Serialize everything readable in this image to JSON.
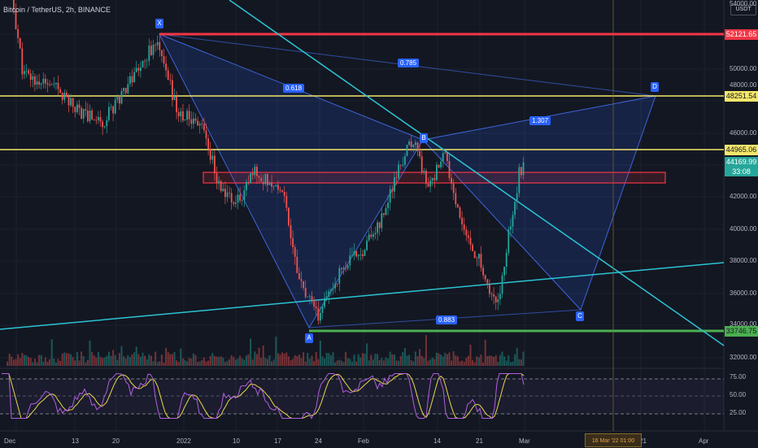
{
  "header": {
    "title": "Bitcoin / TetherUS, 2h, BINANCE",
    "currency": "USDT"
  },
  "price_axis": {
    "ticks": [
      "54000.00",
      "50000.00",
      "48000.00",
      "46000.00",
      "42000.00",
      "40000.00",
      "38000.00",
      "36000.00",
      "34000.00",
      "32000.00"
    ],
    "tags": {
      "x_level": "52121.65",
      "upper_yellow": "48251.54",
      "lower_yellow": "44965.06",
      "current_price": "44169.99",
      "countdown": "33:08",
      "support": "33746.75"
    }
  },
  "rsi_axis": {
    "ticks": [
      "75.00",
      "50.00",
      "25.00"
    ]
  },
  "time_axis": {
    "ticks": [
      "Dec",
      "13",
      "20",
      "2022",
      "10",
      "17",
      "24",
      "Feb",
      "14",
      "21",
      "Mar",
      "21",
      "Apr"
    ],
    "crosshair_label": "16 Mar '22   01:00"
  },
  "pattern": {
    "points": [
      "X",
      "A",
      "B",
      "C",
      "D"
    ],
    "ratios": {
      "xb": "0.618",
      "xd": "0.785",
      "bd": "1.307",
      "ac": "0.883"
    }
  },
  "colors": {
    "background": "#131722",
    "up": "#26a69a",
    "down": "#ef5350",
    "pattern": "#2962ff",
    "trendline": "#2bc4d4",
    "resistance": "#f23645",
    "yellow": "#f5e76a",
    "support": "#4caf50",
    "rsi": "#b25fe0",
    "rsi_ma": "#e6d94a"
  },
  "chart_data": {
    "type": "candlestick",
    "symbol": "BTC/USDT",
    "interval": "2h",
    "ylim": [
      32000,
      54000
    ],
    "levels": [
      52121.65,
      48251.54,
      44965.06,
      33746.75
    ],
    "current_price": 44169.99,
    "pattern_points": [
      {
        "label": "X",
        "date": "2021-12-27",
        "price": 52121.65
      },
      {
        "label": "A",
        "date": "2022-01-24",
        "price": 33746.75
      },
      {
        "label": "B",
        "date": "2022-02-10",
        "price": 45800
      },
      {
        "label": "C",
        "date": "2022-03-07",
        "price": 34800
      },
      {
        "label": "D",
        "date": "2022-03-19",
        "price": 48251.54
      }
    ],
    "rsi_levels": [
      75,
      50,
      25
    ],
    "price_path": [
      {
        "date": "2021-12-01",
        "price": 57000
      },
      {
        "date": "2021-12-04",
        "price": 49500
      },
      {
        "date": "2021-12-10",
        "price": 48500
      },
      {
        "date": "2021-12-14",
        "price": 47200
      },
      {
        "date": "2021-12-18",
        "price": 46600
      },
      {
        "date": "2021-12-22",
        "price": 48900
      },
      {
        "date": "2021-12-27",
        "price": 51500
      },
      {
        "date": "2021-12-31",
        "price": 47000
      },
      {
        "date": "2022-01-04",
        "price": 46500
      },
      {
        "date": "2022-01-07",
        "price": 42500
      },
      {
        "date": "2022-01-10",
        "price": 41500
      },
      {
        "date": "2022-01-13",
        "price": 43500
      },
      {
        "date": "2022-01-18",
        "price": 42400
      },
      {
        "date": "2022-01-21",
        "price": 36500
      },
      {
        "date": "2022-01-24",
        "price": 34500
      },
      {
        "date": "2022-01-28",
        "price": 37400
      },
      {
        "date": "2022-02-01",
        "price": 38800
      },
      {
        "date": "2022-02-04",
        "price": 40500
      },
      {
        "date": "2022-02-08",
        "price": 44500
      },
      {
        "date": "2022-02-10",
        "price": 45500
      },
      {
        "date": "2022-02-12",
        "price": 42300
      },
      {
        "date": "2022-02-15",
        "price": 44500
      },
      {
        "date": "2022-02-18",
        "price": 40000
      },
      {
        "date": "2022-02-21",
        "price": 38000
      },
      {
        "date": "2022-02-24",
        "price": 35000
      },
      {
        "date": "2022-02-26",
        "price": 39500
      },
      {
        "date": "2022-02-28",
        "price": 43500
      },
      {
        "date": "2022-03-01",
        "price": 44200
      }
    ]
  }
}
